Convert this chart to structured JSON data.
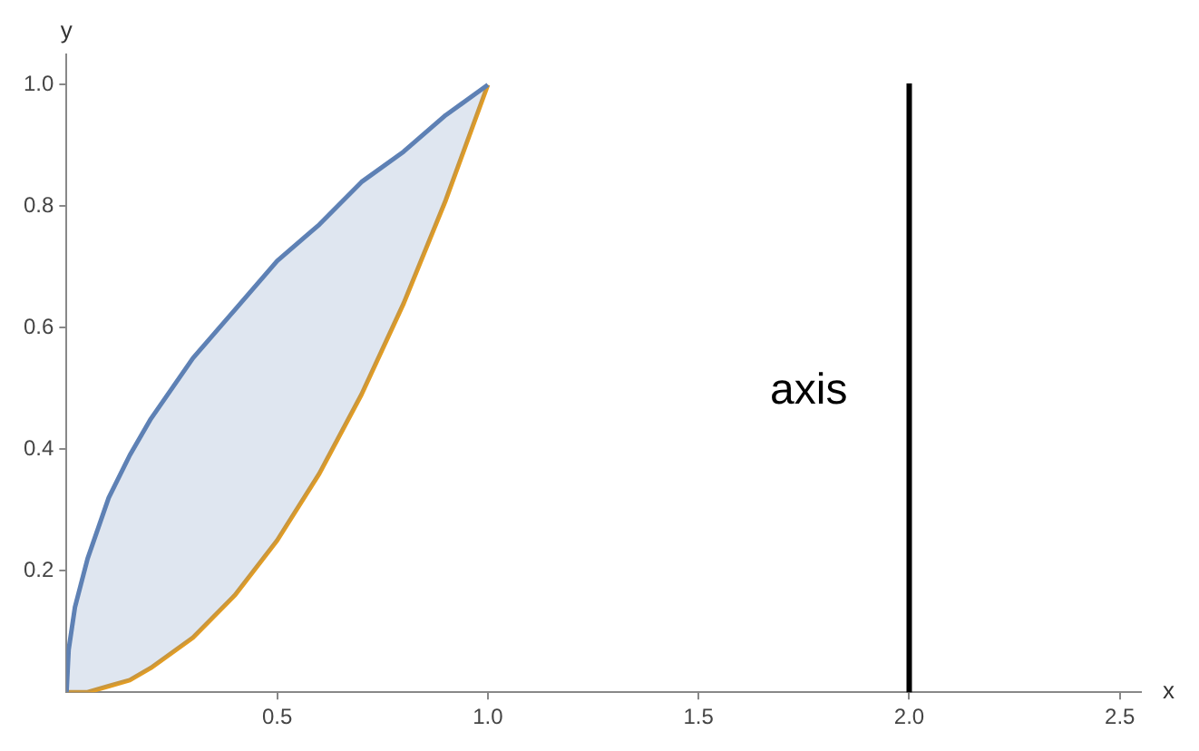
{
  "chart_data": {
    "type": "line",
    "xlabel": "x",
    "ylabel": "y",
    "xlim": [
      0,
      2.55
    ],
    "ylim": [
      0,
      1.05
    ],
    "xticks": [
      0.5,
      {
        "value": 1,
        "label": "1.0"
      },
      1.5,
      {
        "value": 2,
        "label": "2.0"
      },
      2.5
    ],
    "yticks": [
      0.2,
      0.4,
      0.6,
      0.8,
      {
        "value": 1,
        "label": "1.0"
      }
    ],
    "grid": false,
    "legend": false,
    "marker": "none",
    "line_style": "solid",
    "series": [
      {
        "color": "#5e81b5",
        "x": [
          0,
          0.005,
          0.02,
          0.05,
          0.1,
          0.15,
          0.2,
          0.3,
          0.4,
          0.5,
          0.6,
          0.7,
          0.8,
          0.9,
          1
        ],
        "values": [
          0,
          0.07,
          0.14,
          0.22,
          0.32,
          0.39,
          0.45,
          0.55,
          0.63,
          0.71,
          0.77,
          0.84,
          0.89,
          0.95,
          1
        ],
        "lower": [
          0,
          0,
          0,
          0,
          0.01,
          0.02,
          0.04,
          0.09,
          0.16,
          0.25,
          0.36,
          0.49,
          0.64,
          0.81,
          1
        ],
        "upper": [
          0,
          0.07,
          0.14,
          0.22,
          0.32,
          0.39,
          0.45,
          0.55,
          0.63,
          0.71,
          0.77,
          0.84,
          0.89,
          0.95,
          1
        ]
      },
      {
        "color": "#e19c24",
        "x": [
          0,
          0.005,
          0.02,
          0.05,
          0.1,
          0.15,
          0.2,
          0.3,
          0.4,
          0.5,
          0.6,
          0.7,
          0.8,
          0.9,
          1
        ],
        "values": [
          0,
          0,
          0,
          0,
          0.01,
          0.02,
          0.04,
          0.09,
          0.16,
          0.25,
          0.36,
          0.49,
          0.64,
          0.81,
          1
        ]
      }
    ],
    "ref_lines": [
      {
        "axis": "x",
        "value": 2,
        "label": "axis",
        "color": "#000000"
      }
    ]
  }
}
